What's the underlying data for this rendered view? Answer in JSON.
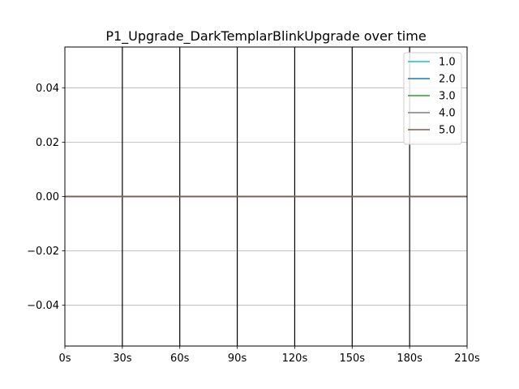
{
  "chart_data": {
    "type": "line",
    "title": "P1_Upgrade_DarkTemplarBlinkUpgrade over time",
    "xlabel": "",
    "ylabel": "",
    "x_ticks": [
      {
        "value": 0,
        "label": "0s"
      },
      {
        "value": 30,
        "label": "30s"
      },
      {
        "value": 60,
        "label": "60s"
      },
      {
        "value": 90,
        "label": "90s"
      },
      {
        "value": 120,
        "label": "120s"
      },
      {
        "value": 150,
        "label": "150s"
      },
      {
        "value": 180,
        "label": "180s"
      },
      {
        "value": 210,
        "label": "210s"
      }
    ],
    "y_ticks": [
      {
        "value": 0.04,
        "label": "0.04"
      },
      {
        "value": 0.02,
        "label": "0.02"
      },
      {
        "value": 0.0,
        "label": "0.00"
      },
      {
        "value": -0.02,
        "label": "−0.02"
      },
      {
        "value": -0.04,
        "label": "−0.04"
      }
    ],
    "xlim": [
      0,
      210
    ],
    "ylim": [
      -0.055,
      0.055
    ],
    "grid": "horizontal",
    "vertical_markers": [
      30,
      60,
      90,
      120,
      150,
      180
    ],
    "legend_position": "top-right",
    "x": [
      0,
      210
    ],
    "series": [
      {
        "name": "1.0",
        "color": "#17becf",
        "values": [
          0,
          0
        ]
      },
      {
        "name": "2.0",
        "color": "#1f77b4",
        "values": [
          0,
          0
        ]
      },
      {
        "name": "3.0",
        "color": "#2ca02c",
        "values": [
          0,
          0
        ]
      },
      {
        "name": "4.0",
        "color": "#7f7f7f",
        "values": [
          0,
          0
        ]
      },
      {
        "name": "5.0",
        "color": "#8c564b",
        "values": [
          0,
          0
        ]
      }
    ]
  }
}
